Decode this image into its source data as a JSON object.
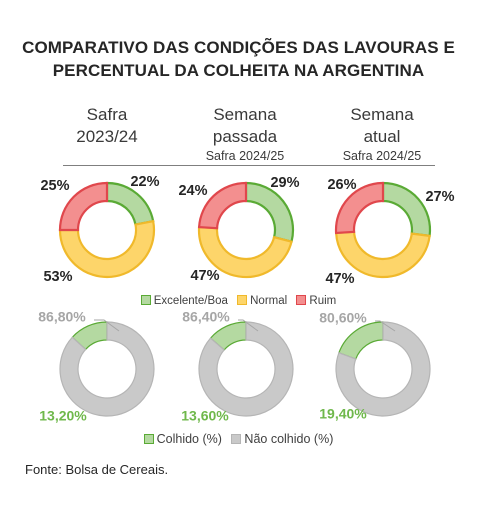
{
  "title": {
    "line1": "COMPARATIVO DAS CONDIÇÕES DAS LAVOURAS E",
    "line2": "PERCENTUAL DA COLHEITA NA ARGENTINA"
  },
  "columns": [
    {
      "line1": "Safra",
      "line2": "2023/24",
      "sub": ""
    },
    {
      "line1": "Semana",
      "line2": "passada",
      "sub": "Safra 2024/25"
    },
    {
      "line1": "Semana",
      "line2": "atual",
      "sub": "Safra 2024/25"
    }
  ],
  "colors": {
    "good_fill": "#b4d9a1",
    "good_stroke": "#5aaa35",
    "normal_fill": "#fdd56a",
    "normal_stroke": "#f0b92b",
    "bad_fill": "#f38f8f",
    "bad_stroke": "#e0474c",
    "harvested_fill": "#b4d9a1",
    "harvested_stroke": "#5aaa35",
    "not_harvested_fill": "#c9c9c9",
    "not_harvested_stroke": "#b5b5b5",
    "harvested_label": "#6fb84b",
    "not_harvested_label": "#a6a6a6"
  },
  "legend_conditions": [
    {
      "label": "Excelente/Boa",
      "key": "good"
    },
    {
      "label": "Normal",
      "key": "normal"
    },
    {
      "label": "Ruim",
      "key": "bad"
    }
  ],
  "legend_harvest": [
    {
      "label": "Colhido (%)",
      "key": "harvested"
    },
    {
      "label": "Não colhido (%)",
      "key": "not_harvested"
    }
  ],
  "source": "Fonte: Bolsa de Cereais.",
  "chart_data": [
    {
      "type": "pie",
      "subtype": "donut",
      "title": "Condições das lavouras",
      "categories": [
        "Safra 2023/24",
        "Semana passada Safra 2024/25",
        "Semana atual Safra 2024/25"
      ],
      "series": [
        {
          "name": "Excelente/Boa",
          "values": [
            22,
            29,
            27
          ],
          "labels": [
            "22%",
            "29%",
            "27%"
          ]
        },
        {
          "name": "Normal",
          "values": [
            53,
            47,
            47
          ],
          "labels": [
            "53%",
            "47%",
            "47%"
          ]
        },
        {
          "name": "Ruim",
          "values": [
            25,
            24,
            26
          ],
          "labels": [
            "25%",
            "24%",
            "26%"
          ]
        }
      ]
    },
    {
      "type": "pie",
      "subtype": "donut",
      "title": "Percentual da colheita",
      "categories": [
        "Safra 2023/24",
        "Semana passada Safra 2024/25",
        "Semana atual Safra 2024/25"
      ],
      "series": [
        {
          "name": "Colhido (%)",
          "values": [
            13.2,
            13.6,
            19.4
          ],
          "labels": [
            "13,20%",
            "13,60%",
            "19,40%"
          ]
        },
        {
          "name": "Não colhido (%)",
          "values": [
            86.8,
            86.4,
            80.6
          ],
          "labels": [
            "86,80%",
            "86,40%",
            "80,60%"
          ]
        }
      ]
    }
  ]
}
